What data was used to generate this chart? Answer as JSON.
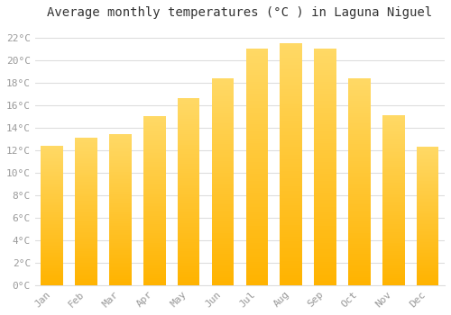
{
  "title": "Average monthly temperatures (°C ) in Laguna Niguel",
  "months": [
    "Jan",
    "Feb",
    "Mar",
    "Apr",
    "May",
    "Jun",
    "Jul",
    "Aug",
    "Sep",
    "Oct",
    "Nov",
    "Dec"
  ],
  "temperatures": [
    12.4,
    13.1,
    13.4,
    15.0,
    16.6,
    18.4,
    21.0,
    21.5,
    21.0,
    18.4,
    15.1,
    12.3
  ],
  "bar_color_bottom": "#FFB300",
  "bar_color_top": "#FFD966",
  "ylim": [
    0,
    23
  ],
  "yticks": [
    0,
    2,
    4,
    6,
    8,
    10,
    12,
    14,
    16,
    18,
    20,
    22
  ],
  "background_color": "#FFFFFF",
  "grid_color": "#DDDDDD",
  "title_fontsize": 10,
  "tick_fontsize": 8,
  "tick_color": "#999999",
  "font_family": "monospace",
  "bar_width": 0.65
}
